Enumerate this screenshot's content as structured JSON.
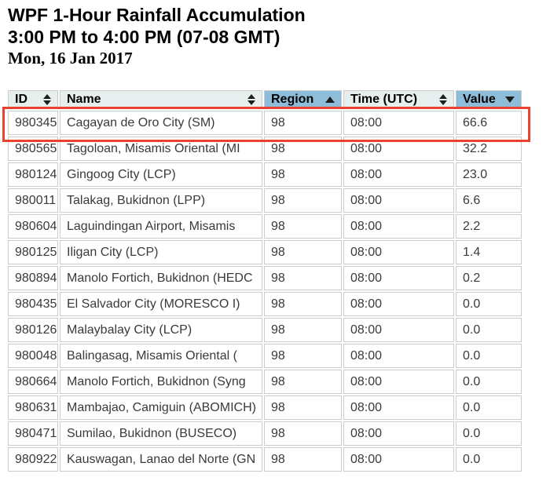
{
  "header": {
    "title": "WPF 1-Hour Rainfall Accumulation",
    "subtitle": "3:00 PM to 4:00 PM (07-08 GMT)",
    "date": "Mon, 16 Jan 2017"
  },
  "table": {
    "columns": [
      {
        "key": "id",
        "label": "ID",
        "sort": "unsorted"
      },
      {
        "key": "name",
        "label": "Name",
        "sort": "unsorted"
      },
      {
        "key": "region",
        "label": "Region",
        "sort": "asc"
      },
      {
        "key": "time",
        "label": "Time (UTC)",
        "sort": "unsorted"
      },
      {
        "key": "value",
        "label": "Value",
        "sort": "desc"
      }
    ],
    "rows": [
      {
        "id": "980345",
        "name": "Cagayan de Oro City (SM)",
        "region": "98",
        "time": "08:00",
        "value": "66.6",
        "highlighted": true
      },
      {
        "id": "980565",
        "name": "Tagoloan, Misamis Oriental (MI",
        "region": "98",
        "time": "08:00",
        "value": "32.2",
        "highlighted": false
      },
      {
        "id": "980124",
        "name": "Gingoog City (LCP)",
        "region": "98",
        "time": "08:00",
        "value": "23.0",
        "highlighted": false
      },
      {
        "id": "980011",
        "name": "Talakag, Bukidnon (LPP)",
        "region": "98",
        "time": "08:00",
        "value": "6.6",
        "highlighted": false
      },
      {
        "id": "980604",
        "name": "Laguindingan Airport, Misamis",
        "region": "98",
        "time": "08:00",
        "value": "2.2",
        "highlighted": false
      },
      {
        "id": "980125",
        "name": "Iligan City (LCP)",
        "region": "98",
        "time": "08:00",
        "value": "1.4",
        "highlighted": false
      },
      {
        "id": "980894",
        "name": "Manolo Fortich, Bukidnon (HEDC",
        "region": "98",
        "time": "08:00",
        "value": "0.2",
        "highlighted": false
      },
      {
        "id": "980435",
        "name": "El Salvador City (MORESCO I)",
        "region": "98",
        "time": "08:00",
        "value": "0.0",
        "highlighted": false
      },
      {
        "id": "980126",
        "name": "Malaybalay City (LCP)",
        "region": "98",
        "time": "08:00",
        "value": "0.0",
        "highlighted": false
      },
      {
        "id": "980048",
        "name": "Balingasag, Misamis Oriental (",
        "region": "98",
        "time": "08:00",
        "value": "0.0",
        "highlighted": false
      },
      {
        "id": "980664",
        "name": "Manolo Fortich, Bukidnon (Syng",
        "region": "98",
        "time": "08:00",
        "value": "0.0",
        "highlighted": false
      },
      {
        "id": "980631",
        "name": "Mambajao, Camiguin (ABOMICH)",
        "region": "98",
        "time": "08:00",
        "value": "0.0",
        "highlighted": false
      },
      {
        "id": "980471",
        "name": "Sumilao, Bukidnon (BUSECO)",
        "region": "98",
        "time": "08:00",
        "value": "0.0",
        "highlighted": false
      },
      {
        "id": "980922",
        "name": "Kauswagan, Lanao del Norte (GN",
        "region": "98",
        "time": "08:00",
        "value": "0.0",
        "highlighted": false
      }
    ]
  },
  "colors": {
    "header_bg": "#e6eeee",
    "sorted_header_bg": "#8dbdd8",
    "cell_border": "#cccccc",
    "highlight_border": "#e8432e",
    "text": "#3a3a3a",
    "arrow": "#1c1c1c"
  }
}
